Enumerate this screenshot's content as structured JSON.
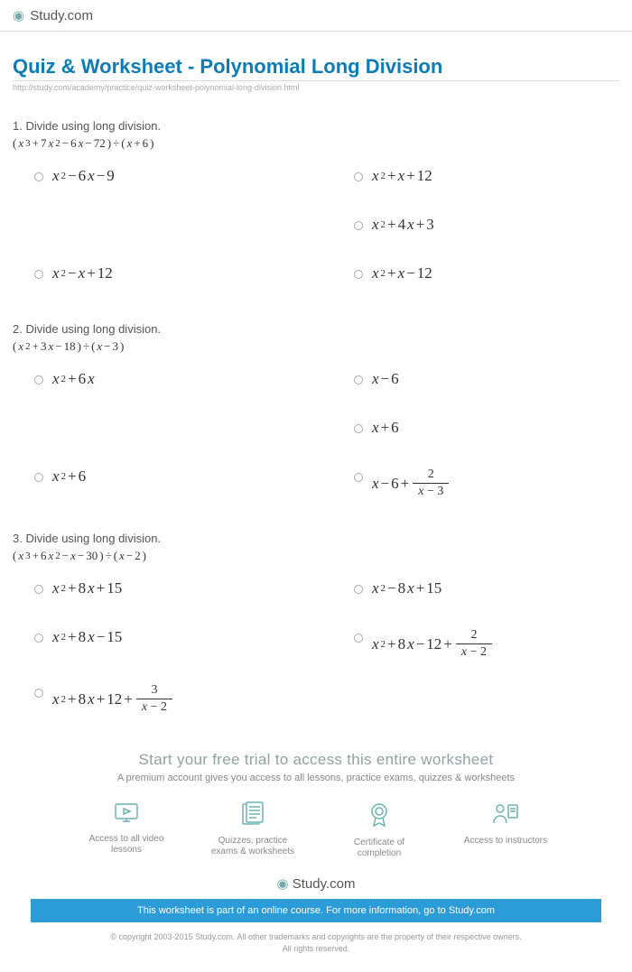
{
  "brand": "Study.com",
  "title": "Quiz & Worksheet - Polynomial Long Division",
  "url": "http://study.com/academy/practice/quiz-worksheet-polynomial-long-division.html",
  "colors": {
    "title": "#0b7cb5",
    "blue_bar_bg": "#2b9cd8",
    "text": "#333333",
    "muted": "#888888",
    "icon_stroke": "#6fb3b3"
  },
  "typography": {
    "title_fontsize": 22,
    "body_fontsize": 13,
    "math_fontsize": 17,
    "math_family": "Times New Roman"
  },
  "questions": [
    {
      "number": "1.",
      "prompt": "Divide using long division.",
      "expression": "(x³ + 7x² − 6x − 72) ÷ (x + 6)",
      "answers": [
        {
          "col": "left",
          "expr": "x² − 6x − 9"
        },
        {
          "col": "right",
          "expr": "x² + x + 12"
        },
        {
          "col": "right",
          "expr": "x² + 4x + 3"
        },
        {
          "col": "left",
          "expr": "x² − x + 12"
        },
        {
          "col": "right",
          "expr": "x² + x − 12"
        }
      ]
    },
    {
      "number": "2.",
      "prompt": "Divide using long division.",
      "expression": "(x² + 3x − 18) ÷ (x − 3)",
      "answers": [
        {
          "col": "left",
          "expr": "x² + 6x"
        },
        {
          "col": "right",
          "expr": "x − 6"
        },
        {
          "col": "right",
          "expr": "x + 6"
        },
        {
          "col": "left",
          "expr": "x² + 6"
        },
        {
          "col": "right",
          "expr": "x − 6 +",
          "frac_num": "2",
          "frac_den": "x − 3"
        }
      ]
    },
    {
      "number": "3.",
      "prompt": "Divide using long division.",
      "expression": "(x³ + 6x² − x − 30) ÷ (x − 2)",
      "answers": [
        {
          "col": "left",
          "expr": "x² + 8x + 15"
        },
        {
          "col": "right",
          "expr": "x² − 8x + 15"
        },
        {
          "col": "left",
          "expr": "x² + 8x − 15"
        },
        {
          "col": "right",
          "expr": "x² + 8x − 12 +",
          "frac_num": "2",
          "frac_den": "x − 2"
        },
        {
          "col": "left",
          "expr": "x² + 8x + 12 +",
          "frac_num": "3",
          "frac_den": "x − 2"
        }
      ]
    }
  ],
  "trial": {
    "title": "Start your free trial to access this entire worksheet",
    "sub": "A premium account gives you access to all lessons, practice exams, quizzes & worksheets",
    "items": [
      {
        "icon": "video-icon",
        "label": "Access to all video lessons"
      },
      {
        "icon": "quiz-icon",
        "label": "Quizzes, practice exams & worksheets"
      },
      {
        "icon": "certificate-icon",
        "label": "Certificate of completion"
      },
      {
        "icon": "instructor-icon",
        "label": "Access to instructors"
      }
    ]
  },
  "blue_bar": "This worksheet is part of an online course. For more information, go to Study.com",
  "copyright_line1": "© copyright 2003-2015 Study.com. All other trademarks and copyrights are the property of their respective owners.",
  "copyright_line2": "All rights reserved."
}
